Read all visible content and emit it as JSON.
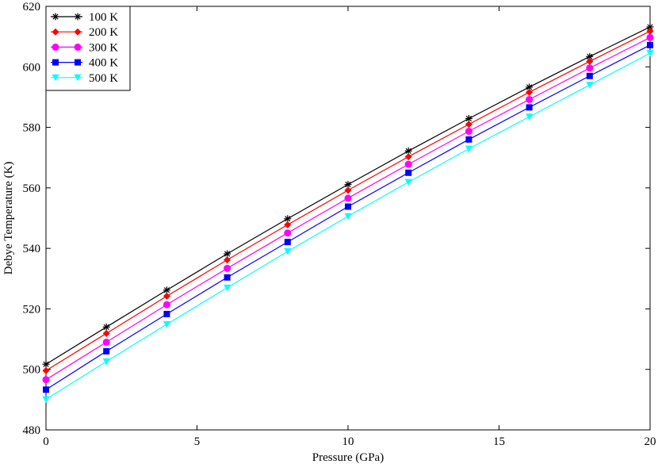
{
  "chart_data": {
    "type": "line",
    "xlabel": "Pressure (GPa)",
    "ylabel": "Debye Temperature (K)",
    "xlim": [
      0,
      20
    ],
    "ylim": [
      480,
      620
    ],
    "xticks": [
      0,
      5,
      10,
      15,
      20
    ],
    "yticks": [
      480,
      500,
      520,
      540,
      560,
      580,
      600,
      620
    ],
    "legend_position": "top-left",
    "grid": false,
    "x": [
      0,
      2,
      4,
      6,
      8,
      10,
      12,
      14,
      16,
      18,
      20
    ],
    "series": [
      {
        "name": "100 K",
        "color": "#000000",
        "marker": "star",
        "values": [
          501.7,
          514.0,
          526.2,
          538.2,
          549.8,
          561.1,
          572.2,
          582.9,
          593.3,
          603.4,
          613.2
        ]
      },
      {
        "name": "200 K",
        "color": "#ff0000",
        "marker": "diamond",
        "values": [
          499.6,
          511.9,
          524.2,
          536.2,
          547.8,
          559.2,
          570.3,
          581.0,
          591.6,
          601.8,
          611.8
        ]
      },
      {
        "name": "300 K",
        "color": "#ff00ff",
        "marker": "circle",
        "values": [
          496.6,
          509.0,
          521.4,
          533.4,
          545.1,
          556.6,
          567.8,
          578.7,
          589.2,
          599.6,
          609.7
        ]
      },
      {
        "name": "400 K",
        "color": "#0000ff",
        "marker": "square",
        "values": [
          493.3,
          506.0,
          518.3,
          530.4,
          542.1,
          553.8,
          565.0,
          576.0,
          586.6,
          597.0,
          607.2
        ]
      },
      {
        "name": "500 K",
        "color": "#00ffff",
        "marker": "triangle-down",
        "values": [
          490.1,
          502.6,
          514.9,
          527.0,
          539.0,
          550.6,
          561.9,
          572.9,
          583.5,
          594.0,
          604.5
        ]
      }
    ]
  }
}
